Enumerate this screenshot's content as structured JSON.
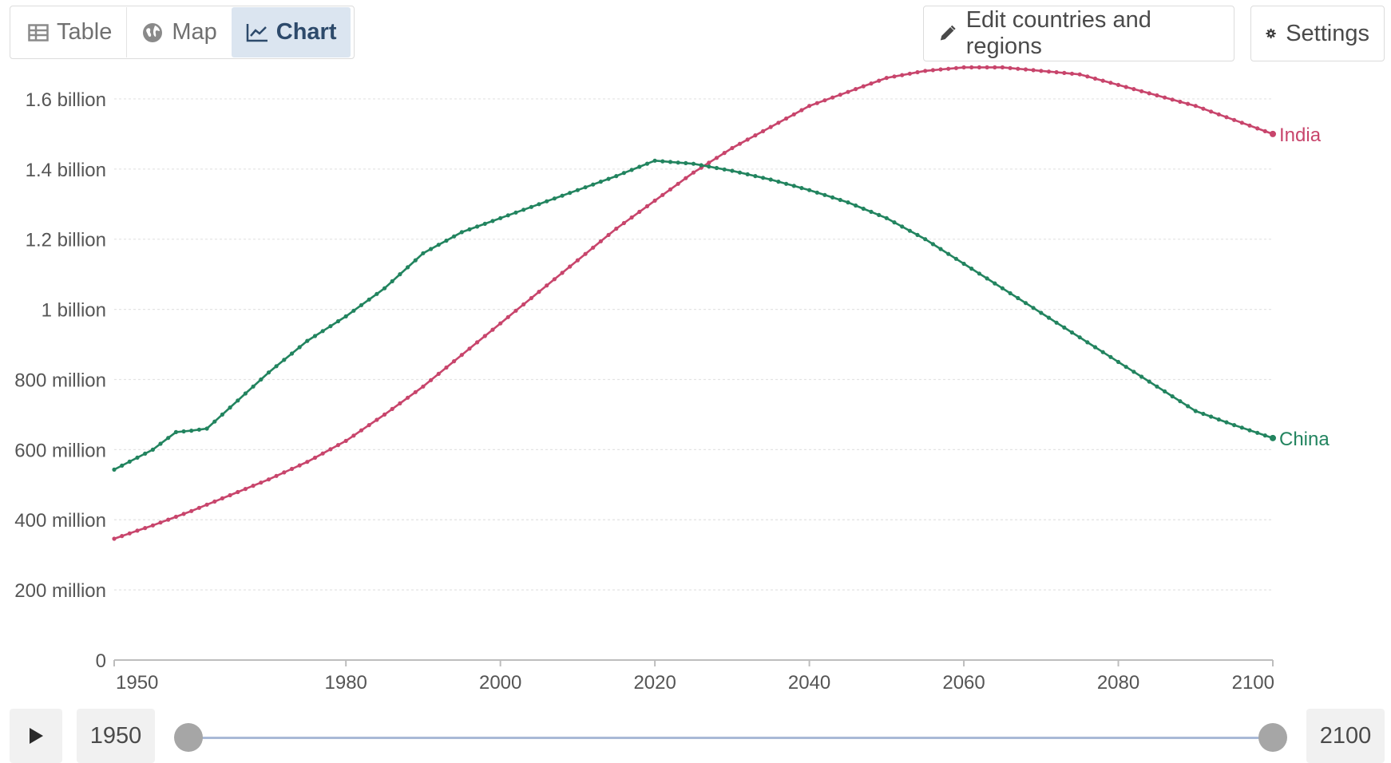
{
  "tabs": [
    {
      "label": "Table",
      "icon": "table-icon",
      "active": false
    },
    {
      "label": "Map",
      "icon": "globe-icon",
      "active": false
    },
    {
      "label": "Chart",
      "icon": "line-chart-icon",
      "active": true
    }
  ],
  "toolbar": {
    "edit_label": "Edit countries and regions",
    "edit_icon": "pencil-icon",
    "settings_label": "Settings",
    "settings_icon": "gear-icon"
  },
  "timeline": {
    "start_year": "1950",
    "end_year": "2100",
    "play_icon": "play-icon"
  },
  "colors": {
    "india": "#c8456c",
    "china": "#22845f",
    "grid": "#e3e3e3",
    "axis": "#bdbdbd",
    "tick_text": "#555555"
  },
  "chart_data": {
    "type": "line",
    "title": "",
    "xlabel": "",
    "ylabel": "",
    "xlim": [
      1950,
      2100
    ],
    "ylim": [
      0,
      1700000000
    ],
    "x_ticks": [
      1950,
      1980,
      2000,
      2020,
      2040,
      2060,
      2080,
      2100
    ],
    "y_ticks": [
      {
        "value": 0,
        "label": "0"
      },
      {
        "value": 200000000,
        "label": "200 million"
      },
      {
        "value": 400000000,
        "label": "400 million"
      },
      {
        "value": 600000000,
        "label": "600 million"
      },
      {
        "value": 800000000,
        "label": "800 million"
      },
      {
        "value": 1000000000,
        "label": "1 billion"
      },
      {
        "value": 1200000000,
        "label": "1.2 billion"
      },
      {
        "value": 1400000000,
        "label": "1.4 billion"
      },
      {
        "value": 1600000000,
        "label": "1.6 billion"
      }
    ],
    "grid": true,
    "legend": "end-of-line labels",
    "series": [
      {
        "name": "India",
        "color": "#c8456c",
        "points": [
          [
            1950,
            346000000
          ],
          [
            1955,
            384000000
          ],
          [
            1960,
            425000000
          ],
          [
            1965,
            470000000
          ],
          [
            1970,
            515000000
          ],
          [
            1975,
            565000000
          ],
          [
            1980,
            625000000
          ],
          [
            1985,
            700000000
          ],
          [
            1990,
            780000000
          ],
          [
            1995,
            870000000
          ],
          [
            2000,
            960000000
          ],
          [
            2005,
            1050000000
          ],
          [
            2010,
            1140000000
          ],
          [
            2015,
            1230000000
          ],
          [
            2020,
            1310000000
          ],
          [
            2025,
            1390000000
          ],
          [
            2030,
            1460000000
          ],
          [
            2035,
            1520000000
          ],
          [
            2040,
            1580000000
          ],
          [
            2045,
            1620000000
          ],
          [
            2050,
            1660000000
          ],
          [
            2055,
            1680000000
          ],
          [
            2060,
            1690000000
          ],
          [
            2065,
            1690000000
          ],
          [
            2070,
            1680000000
          ],
          [
            2075,
            1670000000
          ],
          [
            2080,
            1640000000
          ],
          [
            2085,
            1610000000
          ],
          [
            2090,
            1580000000
          ],
          [
            2095,
            1540000000
          ],
          [
            2100,
            1500000000
          ]
        ]
      },
      {
        "name": "China",
        "color": "#22845f",
        "points": [
          [
            1950,
            543000000
          ],
          [
            1955,
            600000000
          ],
          [
            1958,
            650000000
          ],
          [
            1960,
            654000000
          ],
          [
            1962,
            660000000
          ],
          [
            1965,
            720000000
          ],
          [
            1970,
            820000000
          ],
          [
            1975,
            910000000
          ],
          [
            1980,
            980000000
          ],
          [
            1985,
            1060000000
          ],
          [
            1990,
            1160000000
          ],
          [
            1995,
            1220000000
          ],
          [
            2000,
            1260000000
          ],
          [
            2005,
            1300000000
          ],
          [
            2010,
            1340000000
          ],
          [
            2015,
            1380000000
          ],
          [
            2020,
            1424000000
          ],
          [
            2025,
            1415000000
          ],
          [
            2030,
            1395000000
          ],
          [
            2035,
            1370000000
          ],
          [
            2040,
            1340000000
          ],
          [
            2045,
            1305000000
          ],
          [
            2050,
            1260000000
          ],
          [
            2055,
            1200000000
          ],
          [
            2060,
            1130000000
          ],
          [
            2065,
            1060000000
          ],
          [
            2070,
            990000000
          ],
          [
            2075,
            920000000
          ],
          [
            2080,
            850000000
          ],
          [
            2085,
            780000000
          ],
          [
            2090,
            710000000
          ],
          [
            2095,
            670000000
          ],
          [
            2100,
            633000000
          ]
        ]
      }
    ]
  }
}
